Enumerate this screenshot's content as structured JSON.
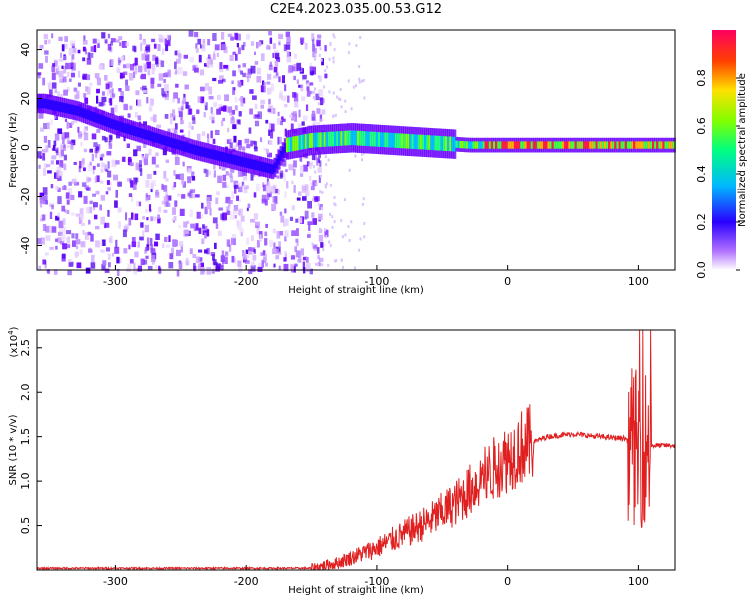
{
  "title": "C2E4.2023.035.00.53.G12",
  "colors": {
    "signal_line": "#e02020",
    "spectrogram_base": "#6a00ff"
  },
  "chart_data": [
    {
      "type": "heatmap",
      "xlabel": "Height of straight line (km)",
      "ylabel": "Frequency (Hz)",
      "xlim": [
        -360,
        128
      ],
      "ylim": [
        -50,
        48
      ],
      "xticks": [
        -300,
        -200,
        -100,
        0,
        100
      ],
      "yticks": [
        -40,
        -20,
        0,
        20,
        40
      ],
      "colorbar": {
        "label": "Normalized spectral amplitude",
        "range": [
          0,
          1
        ],
        "ticks": [
          "0.0",
          "0.2",
          "0.4",
          "0.6",
          "0.8"
        ]
      },
      "ridge": {
        "x": [
          -355,
          -330,
          -300,
          -270,
          -240,
          -210,
          -180,
          -170,
          -150,
          -120,
          -90,
          -60,
          -30,
          0,
          30,
          60,
          90,
          110,
          128
        ],
        "y": [
          18,
          15,
          9,
          4,
          -1,
          -5,
          -9,
          1,
          3,
          4,
          3,
          2,
          1,
          1,
          1,
          1,
          1,
          1,
          1
        ]
      },
      "noise_extent": [
        -360,
        -150
      ]
    },
    {
      "type": "line",
      "xlabel": "Height of straight line (km)",
      "ylabel": "SNR (10 * v/v)",
      "y_multiplier": "(x10",
      "y_multiplier_exp": "4",
      "y_multiplier_close": ")",
      "xlim": [
        -360,
        128
      ],
      "ylim": [
        0,
        2.7
      ],
      "xticks": [
        -300,
        -200,
        -100,
        0,
        100
      ],
      "yticks": [
        0.5,
        1.0,
        1.5,
        2.0,
        2.5
      ],
      "ytick_labels": [
        "0.5",
        "1.0",
        "1.5",
        "2.0",
        "2.5"
      ],
      "envelope": {
        "x": [
          -360,
          -150,
          -130,
          -100,
          -80,
          -60,
          -40,
          -25,
          -10,
          10,
          30,
          50,
          70,
          90,
          95,
          100,
          105,
          110,
          128
        ],
        "y": [
          0.02,
          0.02,
          0.08,
          0.25,
          0.4,
          0.55,
          0.75,
          0.95,
          1.15,
          1.38,
          1.5,
          1.53,
          1.5,
          1.48,
          1.4,
          1.35,
          1.4,
          1.4,
          1.4
        ]
      }
    }
  ]
}
